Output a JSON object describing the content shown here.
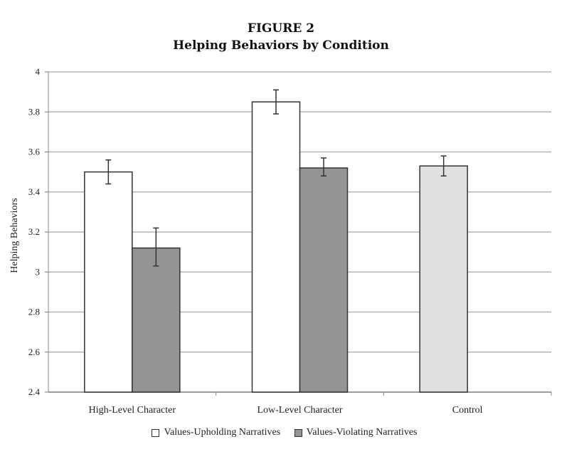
{
  "chart_data": {
    "type": "bar",
    "title": "FIGURE 2",
    "subtitle": "Helping Behaviors by Condition",
    "xlabel": "",
    "ylabel": "Helping Behaviors",
    "ylim": [
      2.4,
      4
    ],
    "yticks": [
      "4",
      "3.8",
      "3.6",
      "3.4",
      "3.2",
      "3",
      "2.8",
      "2.6",
      "2.4"
    ],
    "grid": true,
    "legend_position": "bottom",
    "categories": [
      "High-Level Character",
      "Low-Level Character",
      "Control"
    ],
    "series": [
      {
        "name": "Values-Upholding Narratives",
        "color": "#ffffff",
        "values": [
          3.5,
          3.85,
          null
        ],
        "err_low": [
          3.44,
          3.79,
          null
        ],
        "err_high": [
          3.56,
          3.91,
          null
        ]
      },
      {
        "name": "Values-Violating Narratives",
        "color": "#949494",
        "values": [
          3.12,
          3.52,
          null
        ],
        "err_low": [
          3.03,
          3.48,
          null
        ],
        "err_high": [
          3.22,
          3.57,
          null
        ]
      }
    ],
    "control": {
      "value": 3.53,
      "err_low": 3.48,
      "err_high": 3.58,
      "color": "#e0e0e0"
    }
  }
}
